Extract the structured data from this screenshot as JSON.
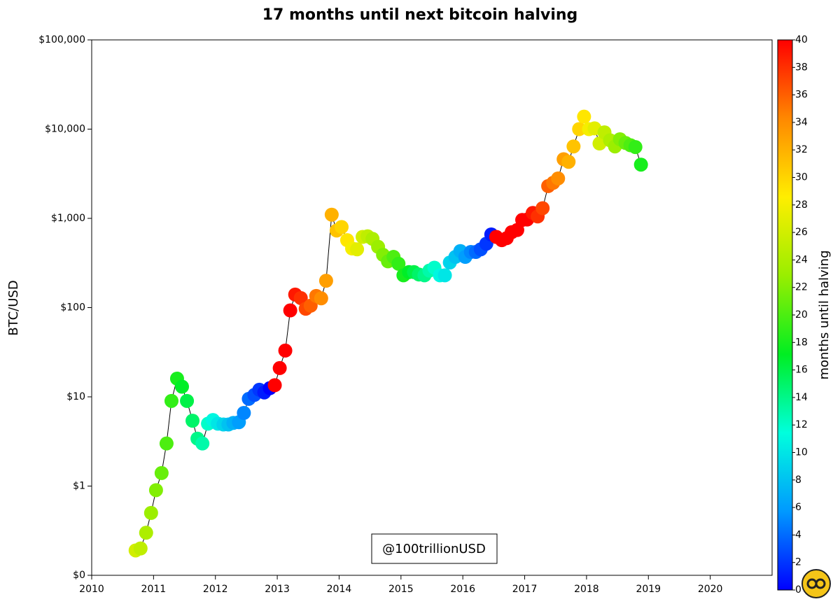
{
  "chart_data": {
    "type": "scatter",
    "title": "17 months until next bitcoin halving",
    "y_label": "BTC/USD",
    "color_label": "months until halving",
    "annotation": "@100trillionUSD",
    "log_y": true,
    "line_color": "#000000",
    "colormap": [
      "#0000ff",
      "#0099ff",
      "#00ffdd",
      "#00ee22",
      "#99ee00",
      "#ffee00",
      "#ff8800",
      "#ff0000"
    ],
    "xlim": [
      2010,
      2021
    ],
    "xticks": [
      2010,
      2011,
      2012,
      2013,
      2014,
      2015,
      2016,
      2017,
      2018,
      2019,
      2020
    ],
    "ylim": [
      0.1,
      100000
    ],
    "yticks": [
      {
        "value": 0.1,
        "label": "$0"
      },
      {
        "value": 1,
        "label": "$1"
      },
      {
        "value": 10,
        "label": "$10"
      },
      {
        "value": 100,
        "label": "$100"
      },
      {
        "value": 1000,
        "label": "$1,000"
      },
      {
        "value": 10000,
        "label": "$10,000"
      },
      {
        "value": 100000,
        "label": "$100,000"
      }
    ],
    "clim": [
      0,
      40
    ],
    "cticks": [
      0,
      2,
      4,
      6,
      8,
      10,
      12,
      14,
      16,
      18,
      20,
      22,
      24,
      26,
      28,
      30,
      32,
      34,
      36,
      38,
      40
    ],
    "x": [
      2010.71,
      2010.79,
      2010.88,
      2010.96,
      2011.04,
      2011.13,
      2011.21,
      2011.29,
      2011.38,
      2011.46,
      2011.54,
      2011.63,
      2011.71,
      2011.79,
      2011.88,
      2011.96,
      2012.04,
      2012.13,
      2012.21,
      2012.29,
      2012.38,
      2012.46,
      2012.54,
      2012.63,
      2012.71,
      2012.79,
      2012.88,
      2012.96,
      2013.04,
      2013.13,
      2013.21,
      2013.29,
      2013.38,
      2013.46,
      2013.54,
      2013.63,
      2013.71,
      2013.79,
      2013.88,
      2013.96,
      2014.04,
      2014.13,
      2014.21,
      2014.29,
      2014.38,
      2014.46,
      2014.54,
      2014.63,
      2014.71,
      2014.79,
      2014.88,
      2014.96,
      2015.04,
      2015.13,
      2015.21,
      2015.29,
      2015.38,
      2015.46,
      2015.54,
      2015.63,
      2015.71,
      2015.79,
      2015.88,
      2015.96,
      2016.04,
      2016.13,
      2016.21,
      2016.29,
      2016.38,
      2016.46,
      2016.54,
      2016.63,
      2016.71,
      2016.79,
      2016.88,
      2016.96,
      2017.04,
      2017.13,
      2017.21,
      2017.29,
      2017.38,
      2017.46,
      2017.54,
      2017.63,
      2017.71,
      2017.79,
      2017.88,
      2017.96,
      2018.04,
      2018.13,
      2018.21,
      2018.29,
      2018.38,
      2018.46,
      2018.54,
      2018.63,
      2018.71,
      2018.79,
      2018.88
    ],
    "values": [
      0.19,
      0.2,
      0.3,
      0.5,
      0.9,
      1.4,
      3.0,
      9,
      16,
      13,
      9,
      5.4,
      3.4,
      3.0,
      5,
      5.5,
      5.0,
      4.9,
      4.9,
      5.1,
      5.2,
      6.6,
      9.5,
      10.5,
      12,
      11.2,
      12.5,
      13.5,
      21,
      33,
      93,
      140,
      128,
      97,
      105,
      135,
      127,
      200,
      1100,
      730,
      800,
      570,
      460,
      450,
      620,
      630,
      590,
      480,
      390,
      330,
      370,
      310,
      230,
      250,
      250,
      235,
      230,
      260,
      280,
      230,
      230,
      320,
      370,
      430,
      370,
      420,
      420,
      450,
      520,
      660,
      620,
      570,
      600,
      700,
      740,
      960,
      970,
      1150,
      1050,
      1300,
      2300,
      2500,
      2800,
      4600,
      4300,
      6400,
      10000,
      13800,
      10000,
      10200,
      6900,
      9200,
      7500,
      6400,
      7700,
      7000,
      6600,
      6300,
      4000
    ],
    "color_values": [
      26,
      25,
      24,
      23,
      22,
      21,
      20,
      19,
      18,
      17,
      16,
      15,
      14,
      13,
      12,
      11,
      10,
      9,
      8,
      7,
      6,
      5,
      4,
      3,
      2,
      1,
      0,
      43,
      42,
      41,
      40,
      39,
      38,
      37,
      36,
      35,
      34,
      33,
      32,
      31,
      30,
      29,
      28,
      27,
      26,
      25,
      24,
      23,
      22,
      21,
      20,
      19,
      18,
      17,
      16,
      15,
      14,
      13,
      12,
      11,
      10,
      9,
      8,
      7,
      6,
      5,
      4,
      3,
      2,
      1,
      46,
      45,
      44,
      43,
      42,
      41,
      40,
      39,
      38,
      37,
      36,
      35,
      34,
      33,
      32,
      31,
      30,
      29,
      28,
      27,
      26,
      25,
      24,
      23,
      22,
      21,
      20,
      19,
      18
    ]
  }
}
